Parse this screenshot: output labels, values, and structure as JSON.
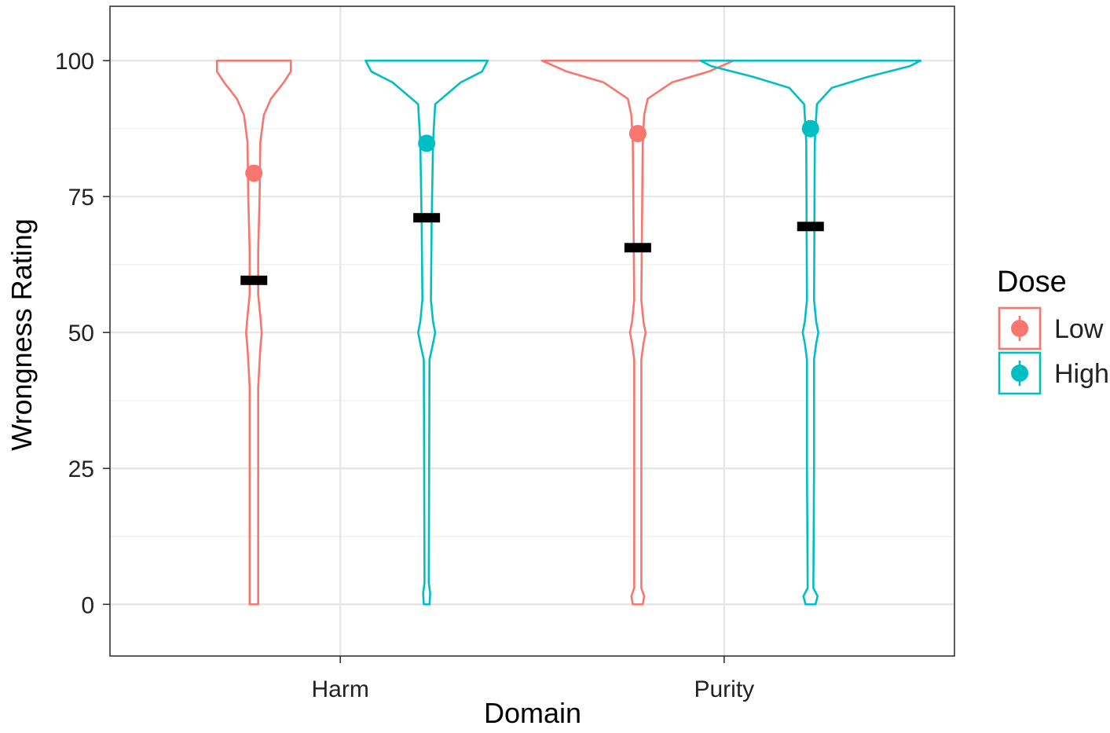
{
  "chart_data": {
    "type": "violin",
    "xlabel": "Domain",
    "ylabel": "Wrongness Rating",
    "categories": [
      "Harm",
      "Purity"
    ],
    "ylim": [
      -9.5,
      110
    ],
    "y_ticks": [
      0,
      25,
      50,
      75,
      100
    ],
    "y_tick_labels": [
      "0",
      "25",
      "50",
      "75",
      "100"
    ],
    "y_minor_ticks": [
      12.5,
      37.5,
      62.5,
      87.5
    ],
    "grid": true,
    "legend": {
      "title": "Dose",
      "position": "right",
      "entries": [
        "Low",
        "High"
      ]
    },
    "series": [
      {
        "name": "Low",
        "color": "#F8766D",
        "violins": [
          {
            "category": "Harm",
            "mean": 79.3,
            "median": 59.6,
            "density": [
              [
                0,
                0.06
              ],
              [
                3,
                0.06
              ],
              [
                10,
                0.06
              ],
              [
                40,
                0.06
              ],
              [
                47,
                0.09
              ],
              [
                50,
                0.11
              ],
              [
                53,
                0.09
              ],
              [
                57,
                0.06
              ],
              [
                65,
                0.06
              ],
              [
                75,
                0.08
              ],
              [
                85,
                0.09
              ],
              [
                90,
                0.14
              ],
              [
                93,
                0.24
              ],
              [
                96,
                0.42
              ],
              [
                98,
                0.52
              ],
              [
                100,
                0.52
              ]
            ]
          },
          {
            "category": "Purity",
            "mean": 86.6,
            "median": 65.6,
            "density": [
              [
                0,
                0.07
              ],
              [
                1.5,
                0.09
              ],
              [
                3,
                0.05
              ],
              [
                45,
                0.05
              ],
              [
                48,
                0.08
              ],
              [
                50,
                0.11
              ],
              [
                52,
                0.08
              ],
              [
                56,
                0.05
              ],
              [
                85,
                0.07
              ],
              [
                90,
                0.09
              ],
              [
                93,
                0.14
              ],
              [
                96,
                0.48
              ],
              [
                98,
                1.0
              ],
              [
                100,
                1.35
              ]
            ]
          }
        ]
      },
      {
        "name": "High",
        "color": "#00BFC4",
        "violins": [
          {
            "category": "Harm",
            "mean": 84.8,
            "median": 71.1,
            "density": [
              [
                0,
                0.04
              ],
              [
                2,
                0.05
              ],
              [
                4,
                0.03
              ],
              [
                45,
                0.04
              ],
              [
                48,
                0.09
              ],
              [
                50,
                0.12
              ],
              [
                52,
                0.09
              ],
              [
                56,
                0.06
              ],
              [
                70,
                0.07
              ],
              [
                85,
                0.09
              ],
              [
                92,
                0.12
              ],
              [
                96,
                0.48
              ],
              [
                98,
                0.78
              ],
              [
                100,
                0.86
              ]
            ]
          },
          {
            "category": "Purity",
            "mean": 87.5,
            "median": 69.5,
            "density": [
              [
                0,
                0.07
              ],
              [
                1.5,
                0.1
              ],
              [
                3,
                0.04
              ],
              [
                25,
                0.05
              ],
              [
                45,
                0.05
              ],
              [
                48,
                0.08
              ],
              [
                50,
                0.11
              ],
              [
                52,
                0.08
              ],
              [
                56,
                0.05
              ],
              [
                85,
                0.06
              ],
              [
                92,
                0.09
              ],
              [
                95,
                0.3
              ],
              [
                97,
                0.8
              ],
              [
                99,
                1.4
              ],
              [
                100,
                1.55
              ]
            ]
          }
        ]
      }
    ]
  }
}
